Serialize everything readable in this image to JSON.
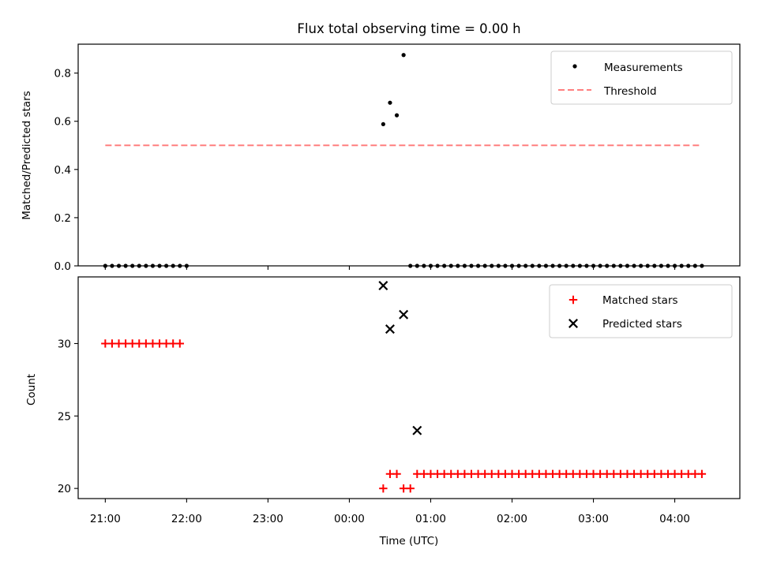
{
  "chart_data": [
    {
      "type": "scatter",
      "title": "Flux total observing time = 0.00 h",
      "xlabel": "",
      "ylabel": "Matched/Predicted stars",
      "ylim": [
        0,
        0.92
      ],
      "yticks": [
        "0.0",
        "0.2",
        "0.4",
        "0.6",
        "0.8"
      ],
      "legend_position": "top-right",
      "series": [
        {
          "name": "Measurements",
          "color": "#000000",
          "marker": "dot",
          "x": [
            "21:00",
            "21:05",
            "21:10",
            "21:15",
            "21:20",
            "21:25",
            "21:30",
            "21:35",
            "21:40",
            "21:45",
            "21:50",
            "21:55",
            "22:00",
            "00:45",
            "00:50",
            "00:55",
            "01:00",
            "01:05",
            "01:10",
            "01:15",
            "01:20",
            "01:25",
            "01:30",
            "01:35",
            "01:40",
            "01:45",
            "01:50",
            "01:55",
            "02:00",
            "02:05",
            "02:10",
            "02:15",
            "02:20",
            "02:25",
            "02:30",
            "02:35",
            "02:40",
            "02:45",
            "02:50",
            "02:55",
            "03:00",
            "03:05",
            "03:10",
            "03:15",
            "03:20",
            "03:25",
            "03:30",
            "03:35",
            "03:40",
            "03:45",
            "03:50",
            "03:55",
            "04:00",
            "04:05",
            "04:10",
            "04:15",
            "04:20",
            "00:25",
            "00:30",
            "00:35",
            "00:40"
          ],
          "y": [
            0,
            0,
            0,
            0,
            0,
            0,
            0,
            0,
            0,
            0,
            0,
            0,
            0,
            0,
            0,
            0,
            0,
            0,
            0,
            0,
            0,
            0,
            0,
            0,
            0,
            0,
            0,
            0,
            0,
            0,
            0,
            0,
            0,
            0,
            0,
            0,
            0,
            0,
            0,
            0,
            0,
            0,
            0,
            0,
            0,
            0,
            0,
            0,
            0,
            0,
            0,
            0,
            0,
            0,
            0,
            0,
            0,
            0.588,
            0.677,
            0.625,
            0.875
          ]
        },
        {
          "name": "Threshold",
          "color": "#ff7f7f",
          "style": "dashed",
          "x": [
            "21:00",
            "04:20"
          ],
          "y": [
            0.5,
            0.5
          ]
        }
      ]
    },
    {
      "type": "scatter",
      "title": "",
      "xlabel": "Time (UTC)",
      "ylabel": "Count",
      "xlim": [
        "20:40",
        "04:48"
      ],
      "ylim": [
        19.3,
        34.6
      ],
      "xticks": [
        "21:00",
        "22:00",
        "23:00",
        "00:00",
        "01:00",
        "02:00",
        "03:00",
        "04:00"
      ],
      "yticks": [
        "20",
        "25",
        "30"
      ],
      "legend_position": "top-right",
      "series": [
        {
          "name": "Matched stars",
          "color": "#ff0000",
          "marker": "plus",
          "x": [
            "21:00",
            "21:05",
            "21:10",
            "21:15",
            "21:20",
            "21:25",
            "21:30",
            "21:35",
            "21:40",
            "21:45",
            "21:50",
            "21:55",
            "00:25",
            "00:30",
            "00:35",
            "00:40",
            "00:45",
            "00:50",
            "00:55",
            "01:00",
            "01:05",
            "01:10",
            "01:15",
            "01:20",
            "01:25",
            "01:30",
            "01:35",
            "01:40",
            "01:45",
            "01:50",
            "01:55",
            "02:00",
            "02:05",
            "02:10",
            "02:15",
            "02:20",
            "02:25",
            "02:30",
            "02:35",
            "02:40",
            "02:45",
            "02:50",
            "02:55",
            "03:00",
            "03:05",
            "03:10",
            "03:15",
            "03:20",
            "03:25",
            "03:30",
            "03:35",
            "03:40",
            "03:45",
            "03:50",
            "03:55",
            "04:00",
            "04:05",
            "04:10",
            "04:15",
            "04:20"
          ],
          "y": [
            30,
            30,
            30,
            30,
            30,
            30,
            30,
            30,
            30,
            30,
            30,
            30,
            20,
            21,
            21,
            20,
            20,
            21,
            21,
            21,
            21,
            21,
            21,
            21,
            21,
            21,
            21,
            21,
            21,
            21,
            21,
            21,
            21,
            21,
            21,
            21,
            21,
            21,
            21,
            21,
            21,
            21,
            21,
            21,
            21,
            21,
            21,
            21,
            21,
            21,
            21,
            21,
            21,
            21,
            21,
            21,
            21,
            21,
            21,
            21
          ]
        },
        {
          "name": "Predicted stars",
          "color": "#000000",
          "marker": "x",
          "x": [
            "00:25",
            "00:30",
            "00:40",
            "00:50"
          ],
          "y": [
            34,
            31,
            32,
            24
          ]
        }
      ]
    }
  ]
}
